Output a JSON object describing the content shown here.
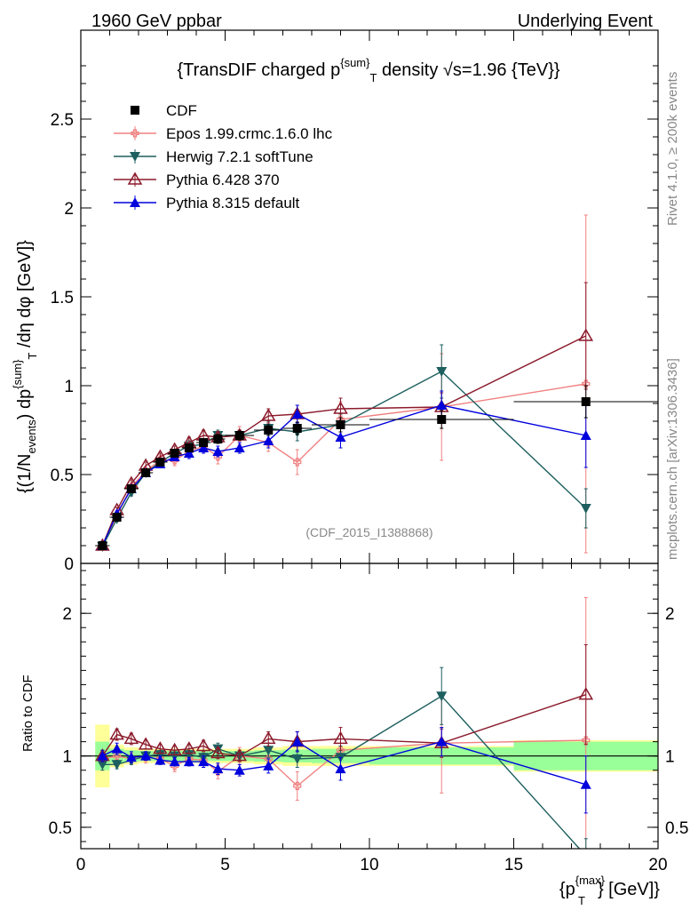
{
  "header": {
    "left": "1960 GeV ppbar",
    "right": "Underlying Event"
  },
  "title": {
    "prefix": "{TransDIF charged p",
    "sup": "{sum}",
    "sub": "T",
    "suffix": " density √s=1.96 {TeV}}"
  },
  "side_labels": {
    "rivet": "Rivet 4.1.0, ≥ 200k events",
    "mcplots": "mcplots.cern.ch [arXiv:1306.3436]"
  },
  "watermark": "(CDF_2015_I1388868)",
  "ylabel_main": "{(1/N_events) dp^{sum}_T /dη dφ [GeV]}",
  "ylabel_main_parts": {
    "a": "{(1/N",
    "b": "events",
    "c": ") dp",
    "d": "{sum}",
    "e": "T",
    "f": " /dη  dφ  [GeV]}"
  },
  "ylabel_ratio": "Ratio to CDF",
  "xlabel_parts": {
    "a": "{p",
    "sup": "{max}",
    "sub": "T",
    "b": "} [GeV]}"
  },
  "chart_data": {
    "type": "scatter",
    "x_range": [
      0,
      20
    ],
    "main": {
      "ylim": [
        0,
        3.0
      ],
      "yticks": [
        {
          "v": 0,
          "label": "0"
        },
        {
          "v": 0.5,
          "label": "0.5"
        },
        {
          "v": 1.0,
          "label": "1"
        },
        {
          "v": 1.5,
          "label": "1.5"
        },
        {
          "v": 2.0,
          "label": "2"
        },
        {
          "v": 2.5,
          "label": "2.5"
        }
      ]
    },
    "ratio": {
      "ylim": [
        0.35,
        2.35
      ],
      "yticks": [
        {
          "v": 0.5,
          "label": "0.5"
        },
        {
          "v": 1.0,
          "label": "1"
        },
        {
          "v": 2.0,
          "label": "2"
        }
      ]
    },
    "xticks": [
      {
        "v": 0,
        "label": "0"
      },
      {
        "v": 5,
        "label": "5"
      },
      {
        "v": 10,
        "label": "10"
      },
      {
        "v": 15,
        "label": "15"
      },
      {
        "v": 20,
        "label": "20"
      }
    ],
    "bins": [
      [
        0.5,
        1.0
      ],
      [
        1.0,
        1.5
      ],
      [
        1.5,
        2.0
      ],
      [
        2.0,
        2.5
      ],
      [
        2.5,
        3.0
      ],
      [
        3.0,
        3.5
      ],
      [
        3.5,
        4.0
      ],
      [
        4.0,
        4.5
      ],
      [
        4.5,
        5.0
      ],
      [
        5.0,
        6.0
      ],
      [
        6.0,
        7.0
      ],
      [
        7.0,
        8.0
      ],
      [
        8.0,
        10.0
      ],
      [
        10.0,
        15.0
      ],
      [
        15.0,
        20.0
      ]
    ],
    "x": [
      0.75,
      1.25,
      1.75,
      2.25,
      2.75,
      3.25,
      3.75,
      4.25,
      4.75,
      5.5,
      6.5,
      7.5,
      9.0,
      12.5,
      17.5
    ],
    "ref": {
      "name": "CDF",
      "color": "#000000",
      "values": [
        0.1,
        0.26,
        0.42,
        0.51,
        0.57,
        0.62,
        0.65,
        0.68,
        0.7,
        0.72,
        0.75,
        0.76,
        0.78,
        0.81,
        0.91
      ],
      "errors": [
        0.005,
        0.01,
        0.015,
        0.015,
        0.015,
        0.02,
        0.02,
        0.02,
        0.025,
        0.025,
        0.03,
        0.035,
        0.04,
        0.05,
        0.09
      ],
      "ratio_band_inner": [
        0.1,
        0.05,
        0.04,
        0.035,
        0.035,
        0.035,
        0.035,
        0.035,
        0.035,
        0.035,
        0.04,
        0.045,
        0.05,
        0.06,
        0.1
      ],
      "ratio_band_outer": [
        0.22,
        0.08,
        0.06,
        0.05,
        0.05,
        0.05,
        0.05,
        0.05,
        0.05,
        0.05,
        0.06,
        0.07,
        0.07,
        0.07,
        0.11
      ]
    },
    "series": [
      {
        "name": "Epos 1.99.crmc.1.6.0 lhc",
        "color": "#f08080",
        "marker": "cross",
        "values": [
          0.1,
          0.27,
          0.43,
          0.52,
          0.58,
          0.58,
          0.63,
          0.66,
          0.6,
          0.72,
          0.68,
          0.57,
          0.81,
          0.88,
          1.01
        ],
        "errors": [
          0.01,
          0.015,
          0.02,
          0.02,
          0.03,
          0.03,
          0.03,
          0.04,
          0.04,
          0.05,
          0.05,
          0.07,
          0.1,
          0.3,
          0.95
        ],
        "ratio": [
          0.98,
          1.0,
          0.98,
          0.99,
          0.98,
          0.93,
          0.98,
          0.97,
          0.89,
          1.0,
          0.98,
          0.79,
          1.04,
          1.09,
          1.11
        ],
        "ratio_err": [
          0.05,
          0.04,
          0.04,
          0.04,
          0.04,
          0.04,
          0.04,
          0.05,
          0.05,
          0.06,
          0.07,
          0.1,
          0.12,
          0.35,
          1.0
        ]
      },
      {
        "name": "Herwig 7.2.1 softTune",
        "color": "#1e5f5f",
        "marker": "triangle-down",
        "values": [
          0.095,
          0.25,
          0.4,
          0.51,
          0.57,
          0.62,
          0.66,
          0.67,
          0.72,
          0.72,
          0.76,
          0.74,
          0.78,
          1.08,
          0.31
        ],
        "errors": [
          0.01,
          0.015,
          0.02,
          0.02,
          0.02,
          0.02,
          0.03,
          0.03,
          0.03,
          0.03,
          0.04,
          0.05,
          0.06,
          0.15,
          0.11
        ],
        "ratio": [
          0.94,
          0.94,
          0.97,
          1.0,
          1.01,
          1.0,
          1.01,
          0.99,
          1.05,
          1.0,
          1.04,
          0.98,
          0.99,
          1.42,
          0.3
        ],
        "ratio_err": [
          0.04,
          0.03,
          0.03,
          0.03,
          0.03,
          0.03,
          0.03,
          0.03,
          0.04,
          0.04,
          0.05,
          0.06,
          0.08,
          0.2,
          0.12
        ]
      },
      {
        "name": "Pythia 6.428 370",
        "color": "#8b1a2b",
        "marker": "triangle-open",
        "values": [
          0.1,
          0.3,
          0.45,
          0.55,
          0.6,
          0.64,
          0.68,
          0.72,
          0.71,
          0.72,
          0.83,
          0.84,
          0.87,
          0.88,
          1.28
        ],
        "errors": [
          0.01,
          0.015,
          0.02,
          0.02,
          0.02,
          0.02,
          0.03,
          0.03,
          0.03,
          0.03,
          0.04,
          0.05,
          0.06,
          0.08,
          0.3
        ],
        "ratio": [
          1.0,
          1.15,
          1.12,
          1.08,
          1.05,
          1.04,
          1.05,
          1.07,
          1.02,
          1.0,
          1.12,
          1.1,
          1.12,
          1.09,
          1.43
        ],
        "ratio_err": [
          0.04,
          0.04,
          0.04,
          0.03,
          0.03,
          0.03,
          0.03,
          0.04,
          0.04,
          0.04,
          0.05,
          0.07,
          0.08,
          0.1,
          0.35
        ]
      },
      {
        "name": "Pythia 8.315 default",
        "color": "#0000dd",
        "marker": "triangle-up",
        "values": [
          0.1,
          0.28,
          0.42,
          0.51,
          0.56,
          0.6,
          0.62,
          0.65,
          0.63,
          0.65,
          0.69,
          0.84,
          0.71,
          0.89,
          0.72
        ],
        "errors": [
          0.01,
          0.015,
          0.02,
          0.02,
          0.02,
          0.02,
          0.03,
          0.03,
          0.03,
          0.03,
          0.04,
          0.05,
          0.06,
          0.08,
          0.18
        ],
        "ratio": [
          1.0,
          1.05,
          0.99,
          1.0,
          0.97,
          0.96,
          0.96,
          0.96,
          0.91,
          0.9,
          0.93,
          1.1,
          0.91,
          1.1,
          0.8
        ],
        "ratio_err": [
          0.04,
          0.04,
          0.04,
          0.03,
          0.03,
          0.03,
          0.03,
          0.04,
          0.04,
          0.04,
          0.05,
          0.07,
          0.08,
          0.1,
          0.2
        ]
      }
    ]
  }
}
